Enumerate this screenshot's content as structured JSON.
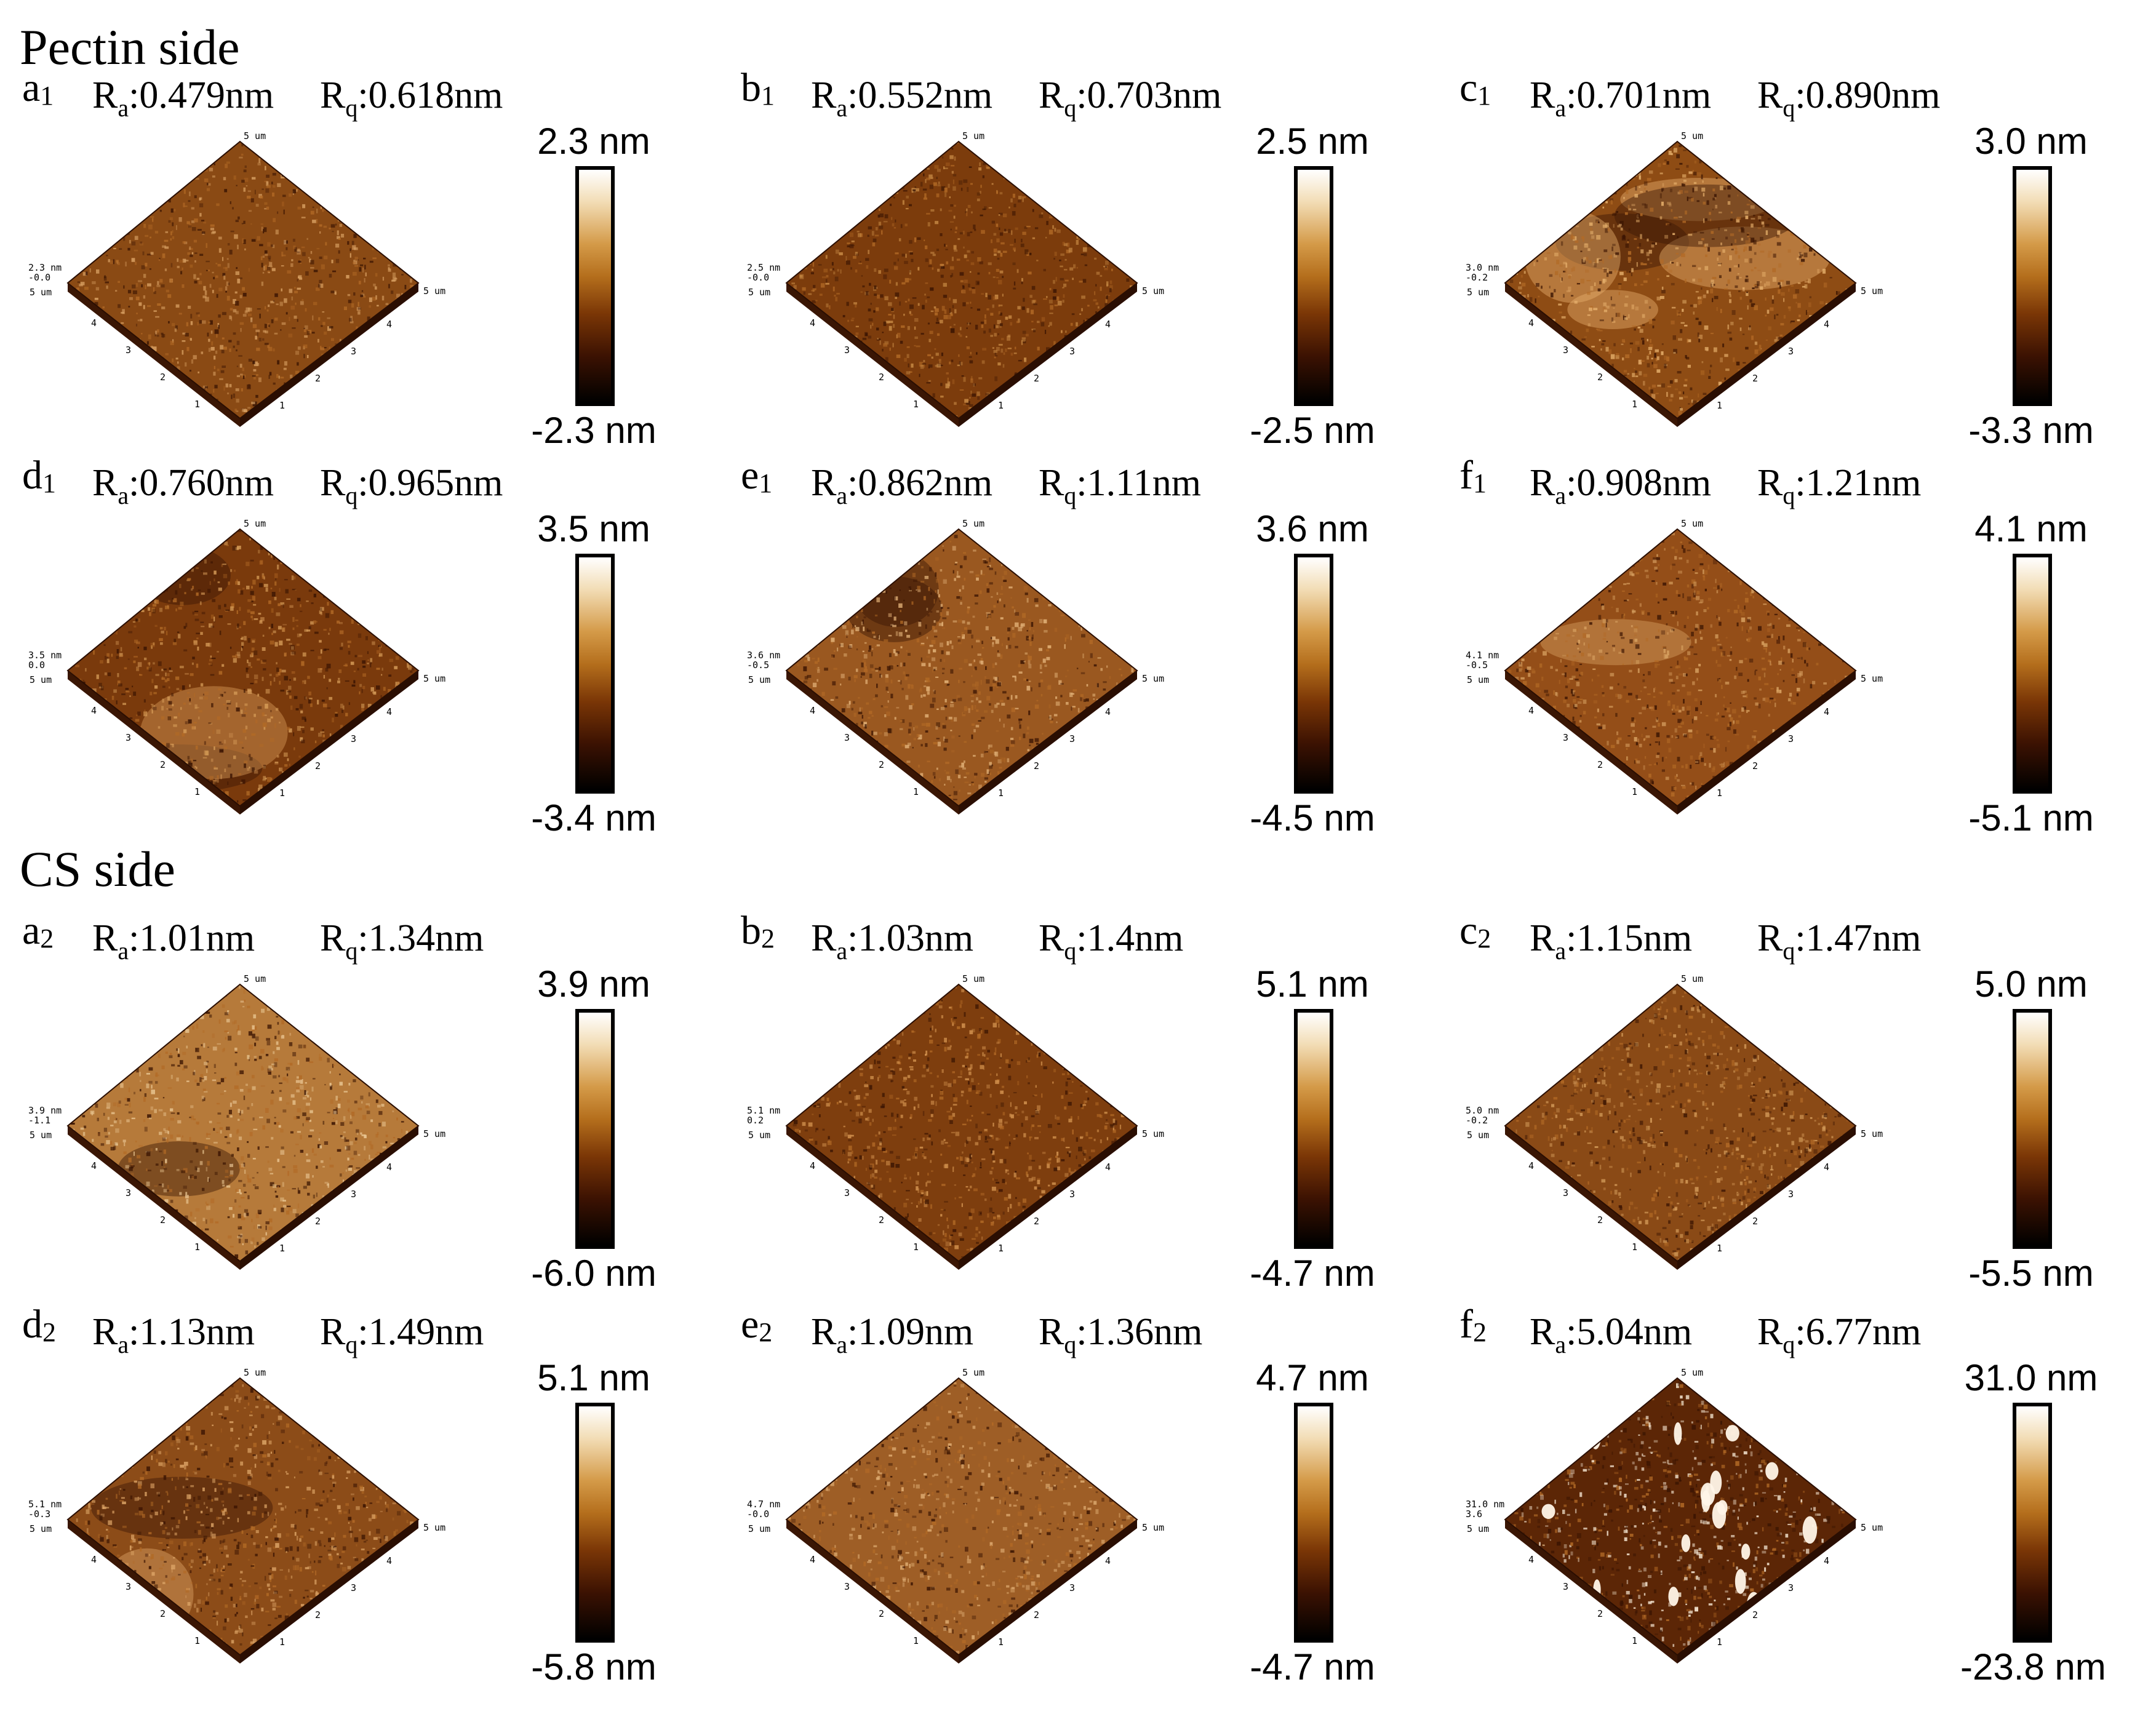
{
  "sections": {
    "pectin": {
      "title": "Pectin side"
    },
    "cs": {
      "title": "CS side"
    }
  },
  "labels": {
    "ra_symbol": "R",
    "ra_sub": "a",
    "rq_symbol": "R",
    "rq_sub": "q"
  },
  "surface_axis_labels": {
    "corner": "5 um",
    "ticks": [
      "1",
      "2",
      "3",
      "4"
    ]
  },
  "panels": [
    {
      "id": "a1",
      "letter": "a",
      "index": "1",
      "ra": ":0.479nm",
      "rq": ":0.618nm",
      "scale_max": "2.3 nm",
      "scale_min": "-2.3 nm",
      "z_top": "2.3 nm",
      "z_bottom": "-0.0"
    },
    {
      "id": "b1",
      "letter": "b",
      "index": "1",
      "ra": ":0.552nm",
      "rq": ":0.703nm",
      "scale_max": "2.5 nm",
      "scale_min": "-2.5 nm",
      "z_top": "2.5 nm",
      "z_bottom": "-0.0"
    },
    {
      "id": "c1",
      "letter": "c",
      "index": "1",
      "ra": ":0.701nm",
      "rq": ":0.890nm",
      "scale_max": "3.0 nm",
      "scale_min": "-3.3 nm",
      "z_top": "3.0 nm",
      "z_bottom": "-0.2"
    },
    {
      "id": "d1",
      "letter": "d",
      "index": "1",
      "ra": ":0.760nm",
      "rq": ":0.965nm",
      "scale_max": "3.5 nm",
      "scale_min": "-3.4 nm",
      "z_top": "3.5 nm",
      "z_bottom": "0.0"
    },
    {
      "id": "e1",
      "letter": "e",
      "index": "1",
      "ra": ":0.862nm",
      "rq": ":1.11nm",
      "scale_max": "3.6 nm",
      "scale_min": "-4.5 nm",
      "z_top": "3.6 nm",
      "z_bottom": "-0.5"
    },
    {
      "id": "f1",
      "letter": "f",
      "index": "1",
      "ra": ":0.908nm",
      "rq": ":1.21nm",
      "scale_max": "4.1 nm",
      "scale_min": "-5.1 nm",
      "z_top": "4.1 nm",
      "z_bottom": "-0.5"
    },
    {
      "id": "a2",
      "letter": "a",
      "index": "2",
      "ra": ":1.01nm",
      "rq": ":1.34nm",
      "scale_max": "3.9 nm",
      "scale_min": "-6.0 nm",
      "z_top": "3.9 nm",
      "z_bottom": "-1.1"
    },
    {
      "id": "b2",
      "letter": "b",
      "index": "2",
      "ra": ":1.03nm",
      "rq": ":1.4nm",
      "scale_max": "5.1 nm",
      "scale_min": "-4.7 nm",
      "z_top": "5.1 nm",
      "z_bottom": "0.2"
    },
    {
      "id": "c2",
      "letter": "c",
      "index": "2",
      "ra": ":1.15nm",
      "rq": ":1.47nm",
      "scale_max": "5.0 nm",
      "scale_min": "-5.5 nm",
      "z_top": "5.0 nm",
      "z_bottom": "-0.2"
    },
    {
      "id": "d2",
      "letter": "d",
      "index": "2",
      "ra": ":1.13nm",
      "rq": ":1.49nm",
      "scale_max": "5.1 nm",
      "scale_min": "-5.8 nm",
      "z_top": "5.1 nm",
      "z_bottom": "-0.3"
    },
    {
      "id": "e2",
      "letter": "e",
      "index": "2",
      "ra": ":1.09nm",
      "rq": ":1.36nm",
      "scale_max": "4.7 nm",
      "scale_min": "-4.7 nm",
      "z_top": "4.7 nm",
      "z_bottom": "-0.0"
    },
    {
      "id": "f2",
      "letter": "f",
      "index": "2",
      "ra": ":5.04nm",
      "rq": ":6.77nm",
      "scale_max": "31.0 nm",
      "scale_min": "-23.8 nm",
      "z_top": "31.0 nm",
      "z_bottom": "3.6"
    }
  ]
}
